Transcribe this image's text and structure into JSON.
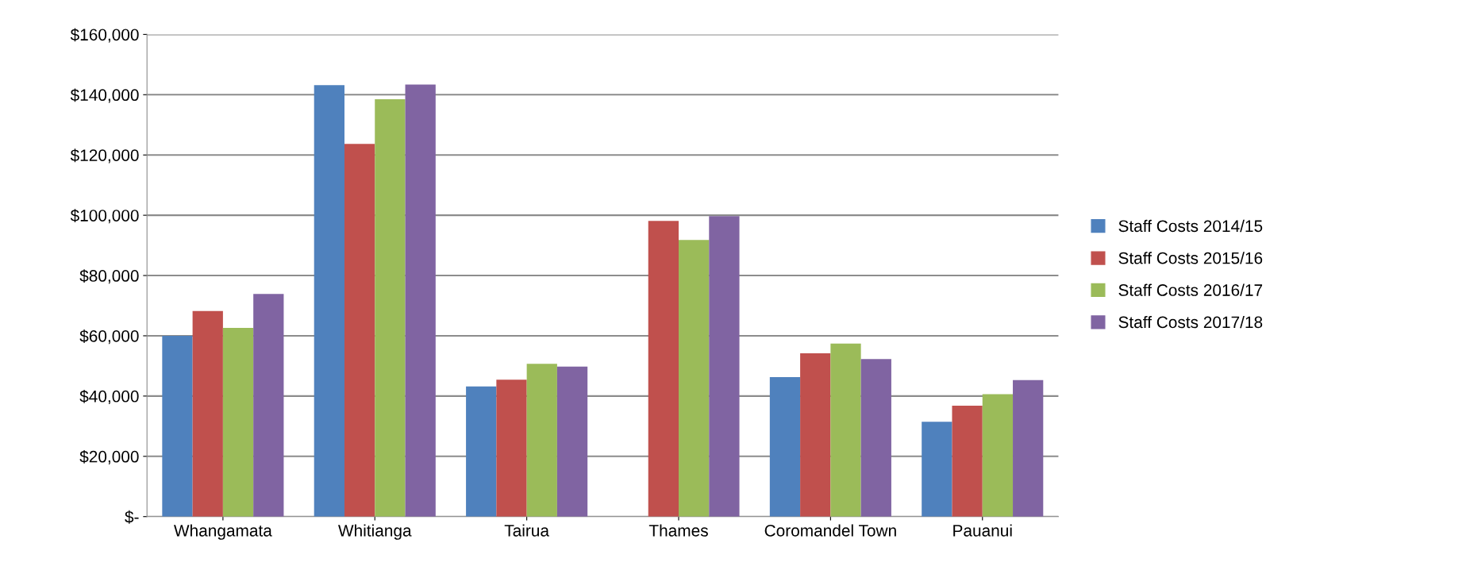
{
  "chart_data": {
    "type": "bar",
    "categories": [
      "Whangamata",
      "Whitianga",
      "Tairua",
      "Thames",
      "Coromandel Town",
      "Pauanui"
    ],
    "series": [
      {
        "name": "Staff Costs 2014/15",
        "color": "#4f81bd",
        "values": [
          60000,
          143200,
          43200,
          null,
          46300,
          31500
        ]
      },
      {
        "name": "Staff Costs 2015/16",
        "color": "#c0504d",
        "values": [
          68200,
          123700,
          45400,
          98100,
          54200,
          36800
        ]
      },
      {
        "name": "Staff Costs 2016/17",
        "color": "#9bbb59",
        "values": [
          62600,
          138500,
          50700,
          91800,
          57400,
          40600
        ]
      },
      {
        "name": "Staff Costs 2017/18",
        "color": "#8064a2",
        "values": [
          73900,
          143400,
          49800,
          99700,
          52300,
          45300
        ]
      }
    ],
    "ylim": [
      0,
      160000
    ],
    "yticks": [
      {
        "value": 0,
        "label": "$-"
      },
      {
        "value": 20000,
        "label": "$20,000"
      },
      {
        "value": 40000,
        "label": "$40,000"
      },
      {
        "value": 60000,
        "label": "$60,000"
      },
      {
        "value": 80000,
        "label": "$80,000"
      },
      {
        "value": 100000,
        "label": "$100,000"
      },
      {
        "value": 120000,
        "label": "$120,000"
      },
      {
        "value": 140000,
        "label": "$140,000"
      },
      {
        "value": 160000,
        "label": "$160,000"
      }
    ],
    "grid": "y",
    "legend": "right"
  }
}
